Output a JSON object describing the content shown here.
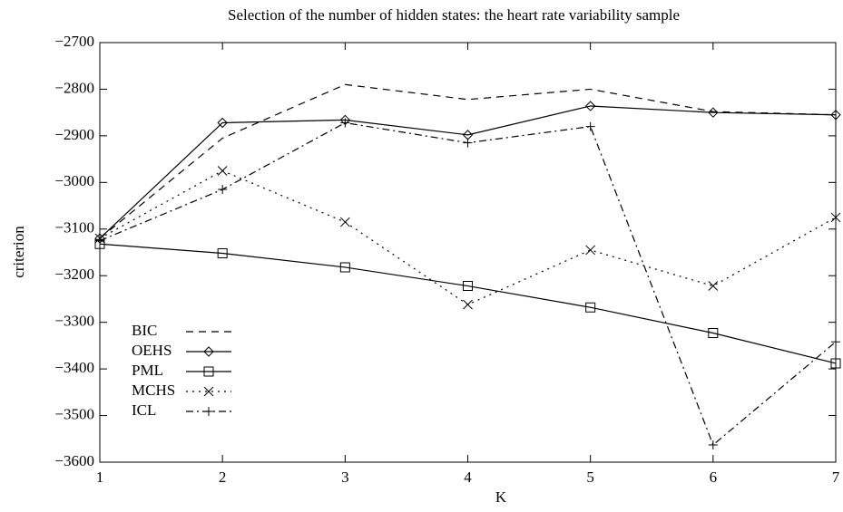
{
  "chart_data": {
    "type": "line",
    "title": "Selection of the number of hidden states: the heart rate variability sample",
    "xlabel": "K",
    "ylabel": "criterion",
    "x": [
      1,
      2,
      3,
      4,
      5,
      6,
      7
    ],
    "xlim": [
      1,
      7
    ],
    "xticks": [
      1,
      2,
      3,
      4,
      5,
      6,
      7
    ],
    "ylim": [
      -3600,
      -2700
    ],
    "yticks": [
      {
        "value": -3600,
        "label": "−3600"
      },
      {
        "value": -3500,
        "label": "−3500"
      },
      {
        "value": -3400,
        "label": "−3400"
      },
      {
        "value": -3300,
        "label": "−3300"
      },
      {
        "value": -3200,
        "label": "−3200"
      },
      {
        "value": -3100,
        "label": "−3100"
      },
      {
        "value": -3000,
        "label": "−3000"
      },
      {
        "value": -2900,
        "label": "−2900"
      },
      {
        "value": -2800,
        "label": "−2800"
      },
      {
        "value": -2700,
        "label": "−2700"
      }
    ],
    "legend": "lower left",
    "series": [
      {
        "name": "BIC",
        "color": "#000",
        "dash": "8,6",
        "marker": "none",
        "values": [
          -3120,
          -2905,
          -2790,
          -2822,
          -2800,
          -2848,
          -2855
        ]
      },
      {
        "name": "OEHS",
        "color": "#000",
        "dash": "none",
        "marker": "diamond",
        "values": [
          -3120,
          -2872,
          -2866,
          -2898,
          -2836,
          -2850,
          -2855
        ]
      },
      {
        "name": "PML",
        "color": "#000",
        "dash": "none",
        "marker": "square",
        "values": [
          -3132,
          -3152,
          -3182,
          -3222,
          -3268,
          -3323,
          -3388
        ]
      },
      {
        "name": "MCHS",
        "color": "#000",
        "dash": "2,5",
        "marker": "x",
        "values": [
          -3120,
          -2975,
          -3085,
          -3262,
          -3145,
          -3222,
          -3075
        ]
      },
      {
        "name": "ICL",
        "color": "#000",
        "dash": "8,4,2,4",
        "marker": "plus",
        "values": [
          -3125,
          -3015,
          -2872,
          -2915,
          -2880,
          -3563,
          -3342
        ]
      }
    ]
  }
}
